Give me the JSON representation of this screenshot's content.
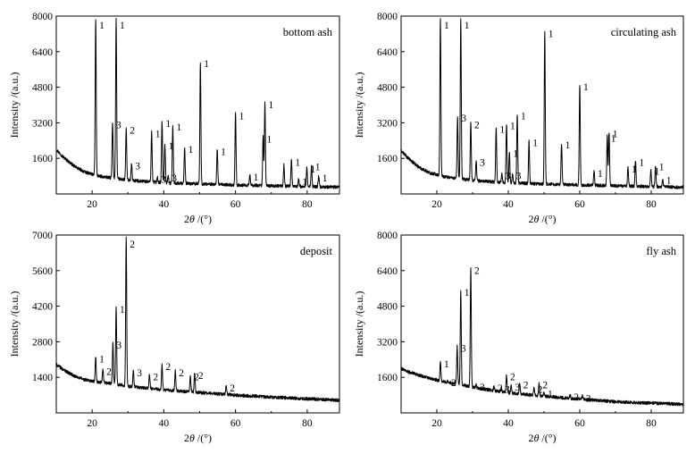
{
  "chart_data": [
    {
      "type": "line",
      "title": "bottom ash",
      "xlabel_base": "2",
      "xlabel_sym": "θ",
      "xlabel_unit": " /(°)",
      "ylabel": "Intensity /(a.u.)",
      "xlim": [
        10,
        89
      ],
      "ylim": [
        0,
        8000
      ],
      "xticks": [
        20,
        40,
        60,
        80
      ],
      "yticks": [
        1600,
        3200,
        4800,
        6400,
        8000
      ],
      "legend": "none",
      "grid": false,
      "background": [
        [
          10,
          2000
        ],
        [
          12,
          1650
        ],
        [
          15,
          1250
        ],
        [
          18,
          980
        ],
        [
          22,
          800
        ],
        [
          26,
          700
        ],
        [
          30,
          620
        ],
        [
          40,
          500
        ],
        [
          60,
          400
        ],
        [
          89,
          300
        ]
      ],
      "peaks": [
        {
          "x": 21.0,
          "y": 7850,
          "label": "1"
        },
        {
          "x": 26.7,
          "y": 7850,
          "label": "1"
        },
        {
          "x": 25.7,
          "y": 3200,
          "label": "3"
        },
        {
          "x": 29.5,
          "y": 2950,
          "label": "2"
        },
        {
          "x": 31.0,
          "y": 1350,
          "label": "3"
        },
        {
          "x": 36.6,
          "y": 2800,
          "label": "1"
        },
        {
          "x": 38.2,
          "y": 750,
          "label": "3"
        },
        {
          "x": 39.5,
          "y": 3250,
          "label": "1"
        },
        {
          "x": 40.3,
          "y": 2250,
          "label": "1"
        },
        {
          "x": 41.2,
          "y": 800,
          "label": "3"
        },
        {
          "x": 42.5,
          "y": 3100,
          "label": "1"
        },
        {
          "x": 45.8,
          "y": 2100,
          "label": "1"
        },
        {
          "x": 50.2,
          "y": 5950,
          "label": "1"
        },
        {
          "x": 54.9,
          "y": 2000,
          "label": "1"
        },
        {
          "x": 60.0,
          "y": 3600,
          "label": "1"
        },
        {
          "x": 64.0,
          "y": 850,
          "label": "1"
        },
        {
          "x": 67.7,
          "y": 2550,
          "label": "1"
        },
        {
          "x": 68.2,
          "y": 4100,
          "label": "1"
        },
        {
          "x": 73.5,
          "y": 1300,
          "label": ""
        },
        {
          "x": 75.6,
          "y": 1500,
          "label": "1"
        },
        {
          "x": 77.6,
          "y": 650,
          "label": "1"
        },
        {
          "x": 79.9,
          "y": 1200,
          "label": "1"
        },
        {
          "x": 81.2,
          "y": 1300,
          "label": "1"
        },
        {
          "x": 83.2,
          "y": 800,
          "label": "1"
        }
      ]
    },
    {
      "type": "line",
      "title": "circulating ash",
      "xlabel_base": "2",
      "xlabel_sym": "θ",
      "xlabel_unit": " /(°)",
      "ylabel": "Intensity /(a.u.)",
      "xlim": [
        10,
        89
      ],
      "ylim": [
        0,
        8000
      ],
      "xticks": [
        20,
        40,
        60,
        80
      ],
      "yticks": [
        1600,
        3200,
        4800,
        6400,
        8000
      ],
      "legend": "none",
      "grid": false,
      "background": [
        [
          10,
          1950
        ],
        [
          12,
          1600
        ],
        [
          15,
          1200
        ],
        [
          18,
          950
        ],
        [
          22,
          780
        ],
        [
          26,
          690
        ],
        [
          30,
          610
        ],
        [
          40,
          500
        ],
        [
          60,
          400
        ],
        [
          89,
          300
        ]
      ],
      "peaks": [
        {
          "x": 21.0,
          "y": 7850,
          "label": "1"
        },
        {
          "x": 26.7,
          "y": 7850,
          "label": "1"
        },
        {
          "x": 25.8,
          "y": 3500,
          "label": "3"
        },
        {
          "x": 29.5,
          "y": 3200,
          "label": "2"
        },
        {
          "x": 31.0,
          "y": 1500,
          "label": "3"
        },
        {
          "x": 36.6,
          "y": 3000,
          "label": "1"
        },
        {
          "x": 38.2,
          "y": 900,
          "label": "3"
        },
        {
          "x": 39.5,
          "y": 3150,
          "label": "1"
        },
        {
          "x": 40.3,
          "y": 1900,
          "label": "1"
        },
        {
          "x": 41.2,
          "y": 900,
          "label": "3"
        },
        {
          "x": 42.5,
          "y": 3600,
          "label": "1"
        },
        {
          "x": 45.8,
          "y": 2400,
          "label": "1"
        },
        {
          "x": 50.2,
          "y": 7300,
          "label": "1"
        },
        {
          "x": 54.9,
          "y": 2300,
          "label": "1"
        },
        {
          "x": 60.0,
          "y": 4900,
          "label": "1"
        },
        {
          "x": 64.0,
          "y": 1000,
          "label": "1"
        },
        {
          "x": 67.7,
          "y": 2600,
          "label": "1"
        },
        {
          "x": 68.2,
          "y": 2800,
          "label": "1"
        },
        {
          "x": 73.5,
          "y": 1200,
          "label": "1"
        },
        {
          "x": 75.6,
          "y": 1500,
          "label": "1"
        },
        {
          "x": 79.9,
          "y": 1100,
          "label": "1"
        },
        {
          "x": 81.2,
          "y": 1300,
          "label": "1"
        },
        {
          "x": 83.2,
          "y": 700,
          "label": "1"
        }
      ]
    },
    {
      "type": "line",
      "title": "deposit",
      "xlabel_base": "2",
      "xlabel_sym": "θ",
      "xlabel_unit": " /(°)",
      "ylabel": "Intensity /(a.u.)",
      "xlim": [
        10,
        89
      ],
      "ylim": [
        0,
        7000
      ],
      "xticks": [
        20,
        40,
        60,
        80
      ],
      "yticks": [
        1400,
        2800,
        4200,
        5600,
        7000
      ],
      "legend": "none",
      "grid": false,
      "background": [
        [
          10,
          1900
        ],
        [
          12,
          1700
        ],
        [
          15,
          1450
        ],
        [
          18,
          1300
        ],
        [
          22,
          1200
        ],
        [
          26,
          1150
        ],
        [
          30,
          1050
        ],
        [
          40,
          900
        ],
        [
          50,
          800
        ],
        [
          60,
          700
        ],
        [
          70,
          620
        ],
        [
          89,
          500
        ]
      ],
      "peaks": [
        {
          "x": 21.0,
          "y": 2200,
          "label": "1"
        },
        {
          "x": 23.0,
          "y": 1700,
          "label": "2"
        },
        {
          "x": 25.8,
          "y": 2750,
          "label": "3"
        },
        {
          "x": 26.7,
          "y": 4150,
          "label": "1"
        },
        {
          "x": 29.5,
          "y": 6900,
          "label": "2"
        },
        {
          "x": 31.5,
          "y": 1650,
          "label": "3"
        },
        {
          "x": 36.0,
          "y": 1500,
          "label": "2"
        },
        {
          "x": 39.5,
          "y": 1900,
          "label": "2"
        },
        {
          "x": 43.2,
          "y": 1650,
          "label": "2"
        },
        {
          "x": 47.4,
          "y": 1500,
          "label": "2"
        },
        {
          "x": 48.6,
          "y": 1550,
          "label": "2"
        },
        {
          "x": 57.4,
          "y": 1050,
          "label": "2"
        }
      ]
    },
    {
      "type": "line",
      "title": "fly ash",
      "xlabel_base": "2",
      "xlabel_sym": "θ",
      "xlabel_unit": " /(°)",
      "ylabel": "Intensity /(a.u.)",
      "xlim": [
        10,
        89
      ],
      "ylim": [
        0,
        8000
      ],
      "xticks": [
        20,
        40,
        60,
        80
      ],
      "yticks": [
        1600,
        3200,
        4800,
        6400,
        8000
      ],
      "legend": "none",
      "grid": false,
      "background": [
        [
          10,
          2000
        ],
        [
          12,
          1850
        ],
        [
          15,
          1700
        ],
        [
          18,
          1550
        ],
        [
          22,
          1400
        ],
        [
          26,
          1300
        ],
        [
          30,
          1150
        ],
        [
          40,
          900
        ],
        [
          50,
          750
        ],
        [
          60,
          620
        ],
        [
          70,
          500
        ],
        [
          89,
          380
        ]
      ],
      "peaks": [
        {
          "x": 21.0,
          "y": 2300,
          "label": "1"
        },
        {
          "x": 23.0,
          "y": 1450,
          "label": "2"
        },
        {
          "x": 25.7,
          "y": 3000,
          "label": "3"
        },
        {
          "x": 26.7,
          "y": 5500,
          "label": "1"
        },
        {
          "x": 29.5,
          "y": 6500,
          "label": "2"
        },
        {
          "x": 31.0,
          "y": 1250,
          "label": "3"
        },
        {
          "x": 36.0,
          "y": 1200,
          "label": "2"
        },
        {
          "x": 38.0,
          "y": 1150,
          "label": "3"
        },
        {
          "x": 39.5,
          "y": 1700,
          "label": "2"
        },
        {
          "x": 40.8,
          "y": 1250,
          "label": "3"
        },
        {
          "x": 43.2,
          "y": 1350,
          "label": "2"
        },
        {
          "x": 47.2,
          "y": 1150,
          "label": "2"
        },
        {
          "x": 48.6,
          "y": 1350,
          "label": "2"
        },
        {
          "x": 50.0,
          "y": 950,
          "label": "1"
        },
        {
          "x": 57.3,
          "y": 800,
          "label": "2"
        },
        {
          "x": 60.7,
          "y": 750,
          "label": "2"
        }
      ]
    }
  ]
}
